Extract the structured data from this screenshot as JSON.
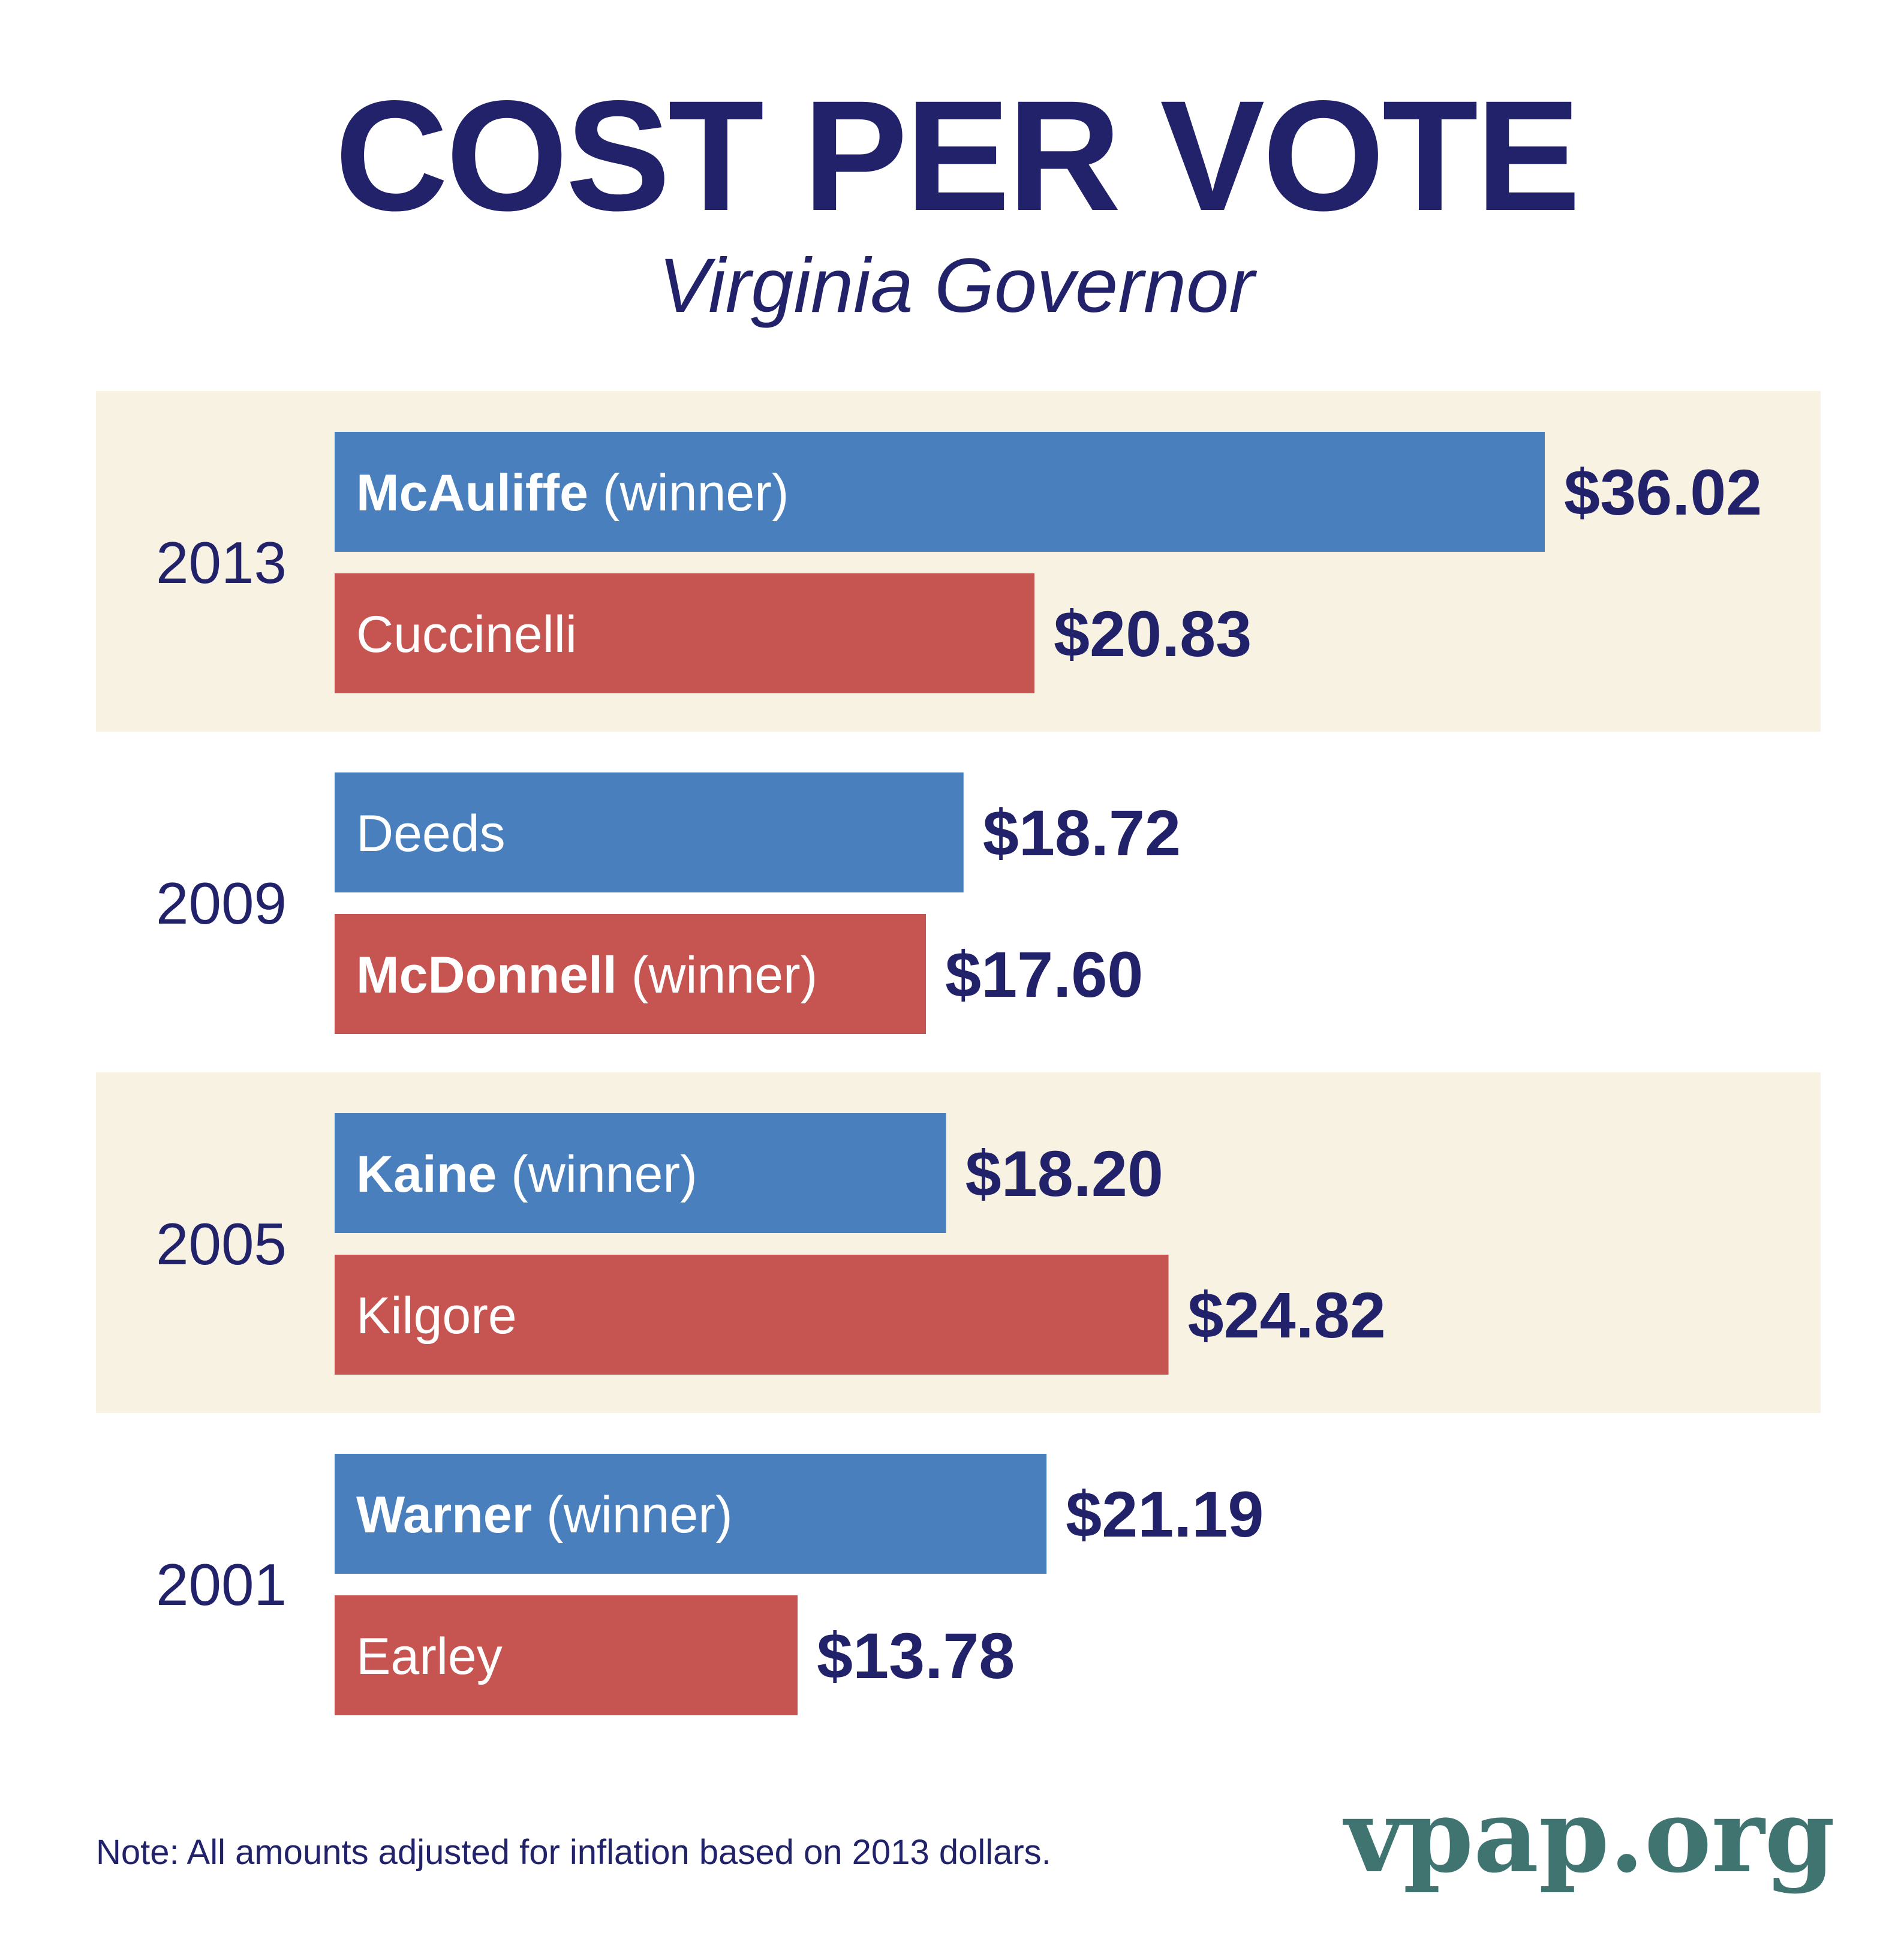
{
  "colors": {
    "text": "#22226b",
    "democrat_bar": "#497fbd",
    "republican_bar": "#c65450",
    "band": "#f8f2e2",
    "brand": "#3f7470"
  },
  "header": {
    "title": "COST PER VOTE",
    "subtitle": "Virginia Governor"
  },
  "footer": {
    "note": "Note: All amounts adjusted for inflation based on 2013 dollars.",
    "brand": "vpap.org"
  },
  "chart_data": {
    "type": "bar",
    "orientation": "horizontal",
    "title": "COST PER VOTE",
    "subtitle": "Virginia Governor",
    "value_unit": "$",
    "note": "Note: All amounts adjusted for inflation based on 2013 dollars.",
    "groups": [
      {
        "year": "2013",
        "shaded": true,
        "bars": [
          {
            "name": "McAuliffe",
            "suffix": "(winner)",
            "winner": true,
            "party_color": "democrat_bar",
            "value": 36.02,
            "label": "$36.02"
          },
          {
            "name": "Cuccinelli",
            "suffix": "",
            "winner": false,
            "party_color": "republican_bar",
            "value": 20.83,
            "label": "$20.83"
          }
        ]
      },
      {
        "year": "2009",
        "shaded": false,
        "bars": [
          {
            "name": "Deeds",
            "suffix": "",
            "winner": false,
            "party_color": "democrat_bar",
            "value": 18.72,
            "label": "$18.72"
          },
          {
            "name": "McDonnell",
            "suffix": "(winner)",
            "winner": true,
            "party_color": "republican_bar",
            "value": 17.6,
            "label": "$17.60"
          }
        ]
      },
      {
        "year": "2005",
        "shaded": true,
        "bars": [
          {
            "name": "Kaine",
            "suffix": "(winner)",
            "winner": true,
            "party_color": "democrat_bar",
            "value": 18.2,
            "label": "$18.20"
          },
          {
            "name": "Kilgore",
            "suffix": "",
            "winner": false,
            "party_color": "republican_bar",
            "value": 24.82,
            "label": "$24.82"
          }
        ]
      },
      {
        "year": "2001",
        "shaded": false,
        "bars": [
          {
            "name": "Warner",
            "suffix": "(winner)",
            "winner": true,
            "party_color": "democrat_bar",
            "value": 21.19,
            "label": "$21.19"
          },
          {
            "name": "Earley",
            "suffix": "",
            "winner": false,
            "party_color": "republican_bar",
            "value": 13.78,
            "label": "$13.78"
          }
        ]
      }
    ]
  }
}
